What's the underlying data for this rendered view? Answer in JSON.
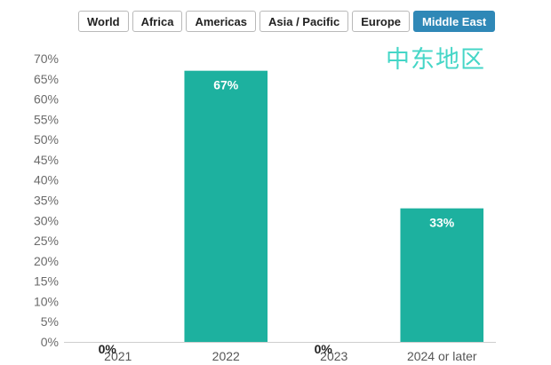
{
  "tabs": [
    {
      "label": "World",
      "active": false
    },
    {
      "label": "Africa",
      "active": false
    },
    {
      "label": "Americas",
      "active": false
    },
    {
      "label": "Asia / Pacific",
      "active": false
    },
    {
      "label": "Europe",
      "active": false
    },
    {
      "label": "Middle East",
      "active": true
    }
  ],
  "overlay_label": "中东地区",
  "colors": {
    "bar": "#1db19f",
    "active_tab": "#2f88b7",
    "label_inside": "#ffffff",
    "label_outside": "#222222"
  },
  "chart_data": {
    "type": "bar",
    "categories": [
      "2021",
      "2022",
      "2023",
      "2024 or later"
    ],
    "values": [
      0,
      67,
      0,
      33
    ],
    "data_labels": [
      "0%",
      "67%",
      "0%",
      "33%"
    ],
    "ylim": [
      0,
      70
    ],
    "yticks": [
      "0%",
      "5%",
      "10%",
      "15%",
      "20%",
      "25%",
      "30%",
      "35%",
      "40%",
      "45%",
      "50%",
      "55%",
      "60%",
      "65%",
      "70%"
    ],
    "grid": false,
    "legend": "none"
  }
}
